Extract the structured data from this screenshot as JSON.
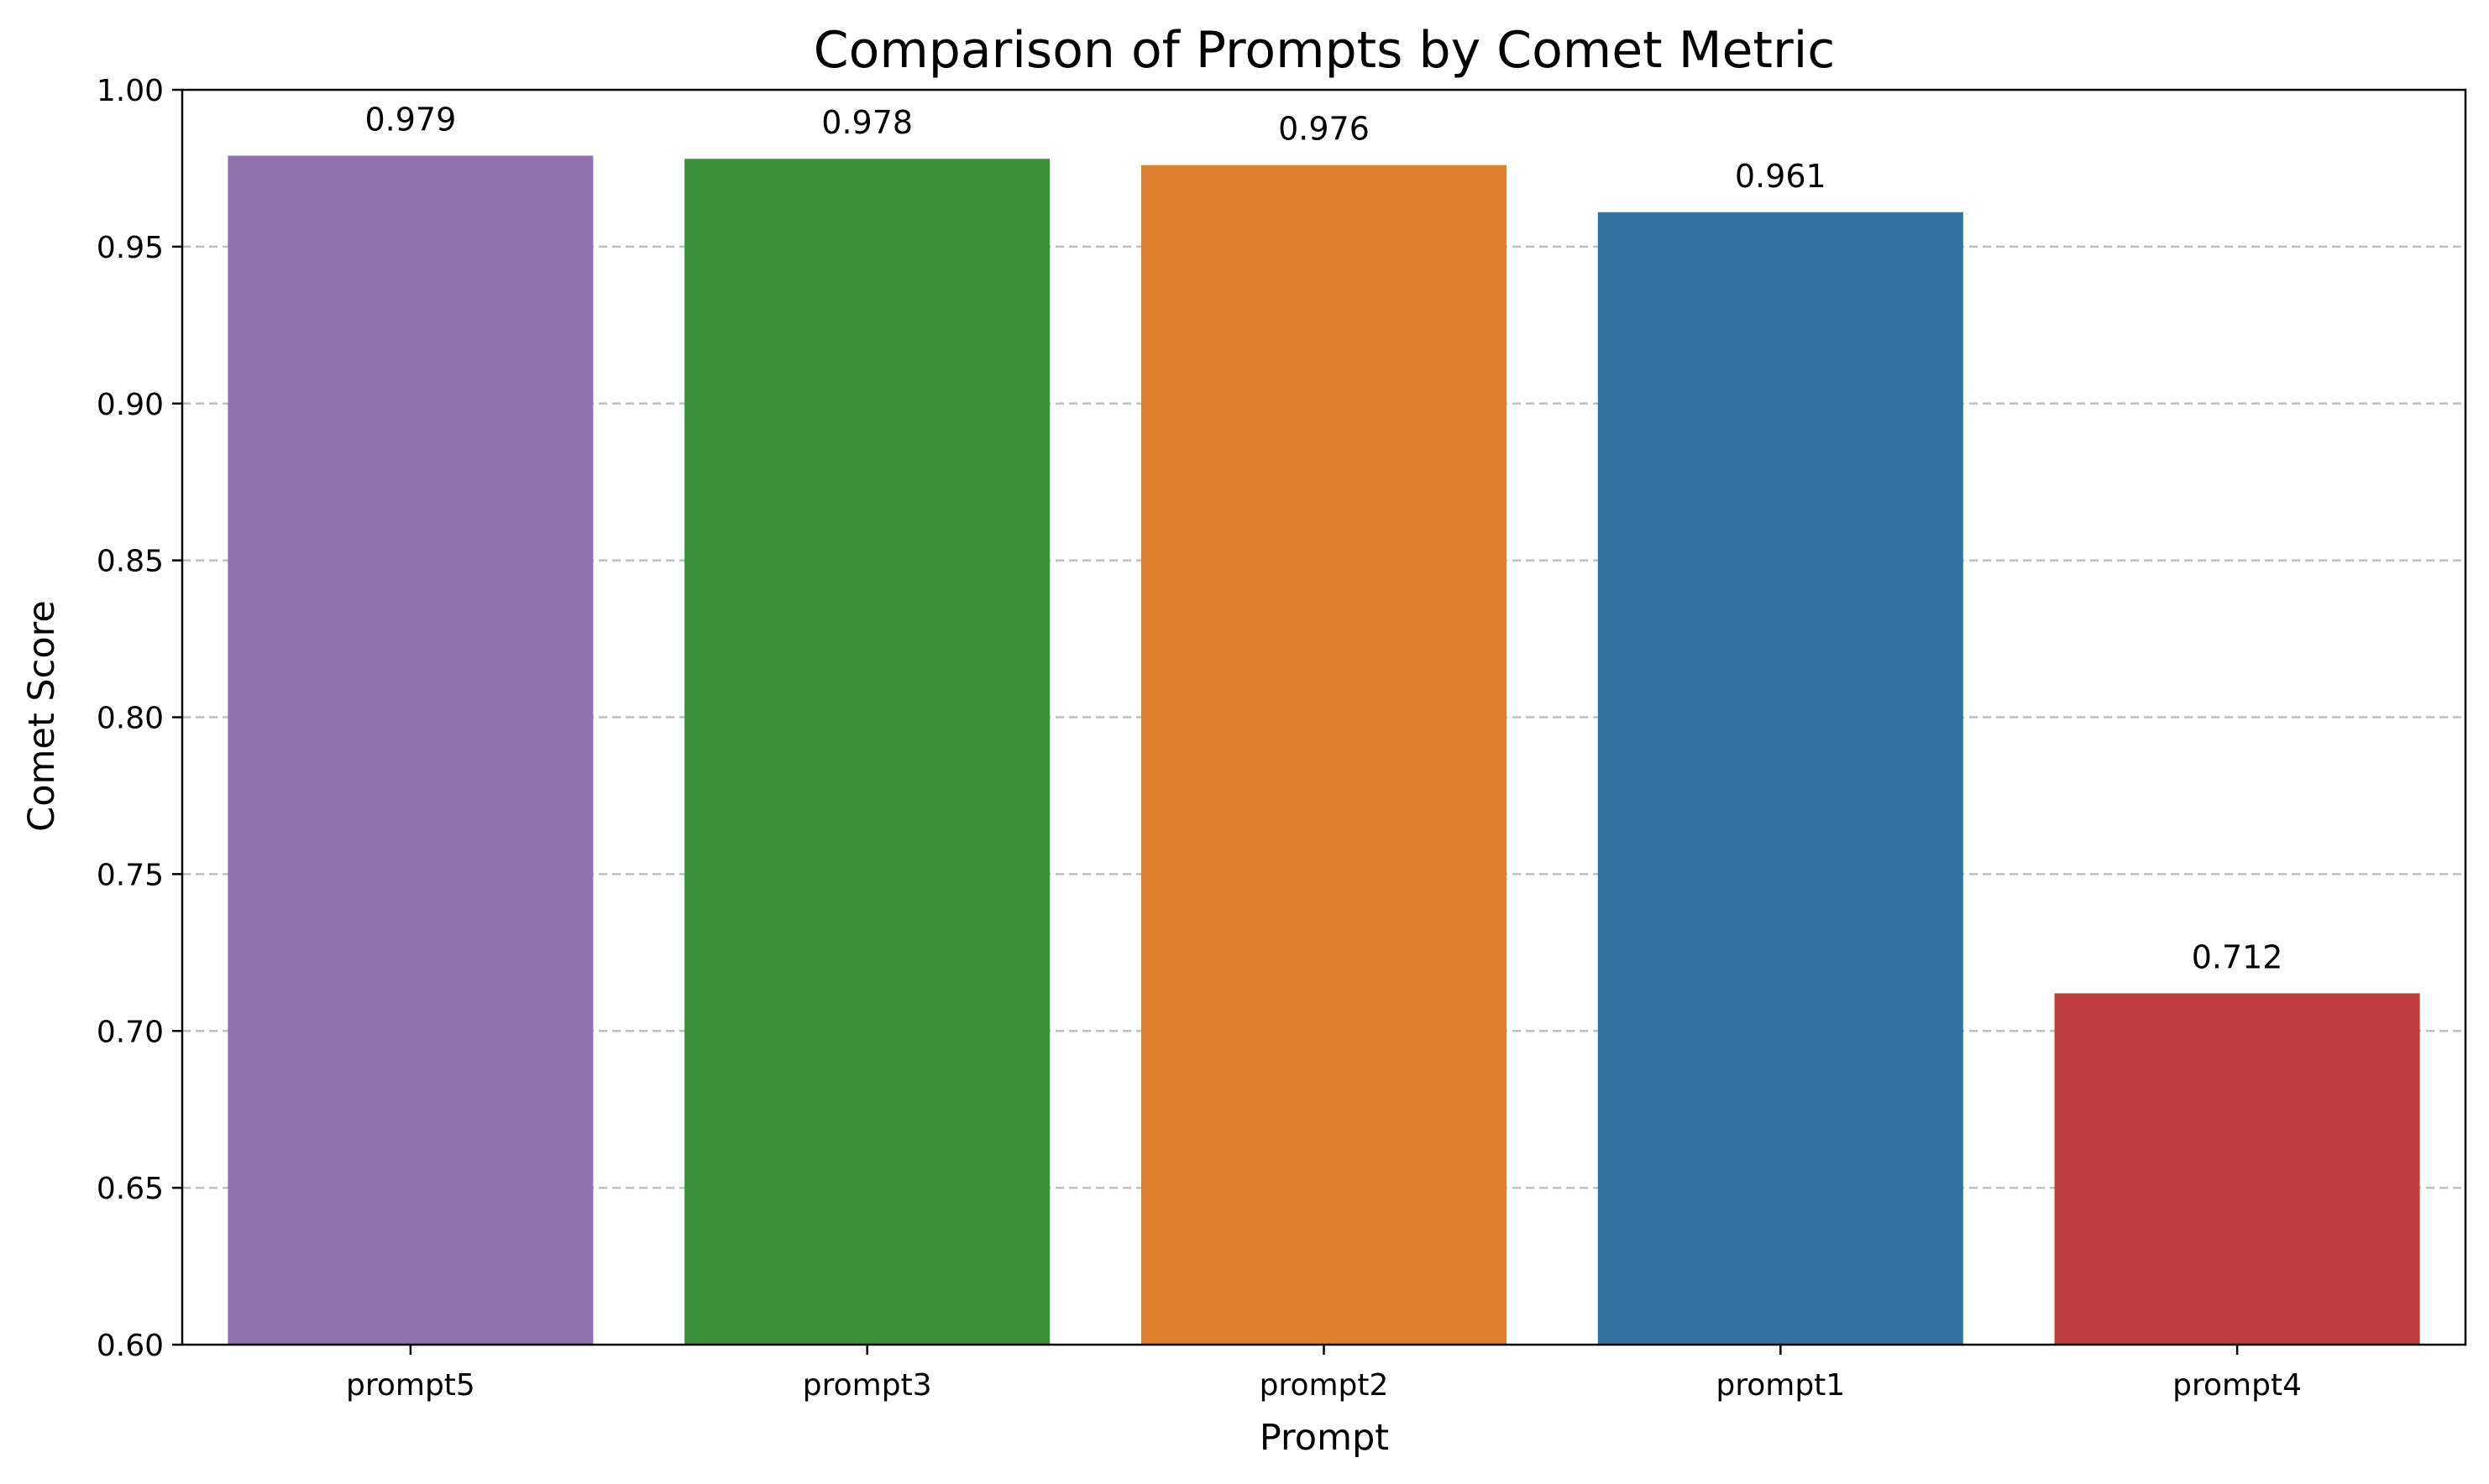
{
  "chart_data": {
    "type": "bar",
    "title": "Comparison of Prompts by Comet Metric",
    "xlabel": "Prompt",
    "ylabel": "Comet Score",
    "categories": [
      "prompt5",
      "prompt3",
      "prompt2",
      "prompt1",
      "prompt4"
    ],
    "values": [
      0.979,
      0.978,
      0.976,
      0.961,
      0.712
    ],
    "data_labels": [
      "0.979",
      "0.978",
      "0.976",
      "0.961",
      "0.712"
    ],
    "colors": [
      "#9172ae",
      "#3a913a",
      "#e0802e",
      "#3174a2",
      "#c03d3e"
    ],
    "ylim": [
      0.6,
      1.0
    ],
    "yticks": [
      0.6,
      0.65,
      0.7,
      0.75,
      0.8,
      0.85,
      0.9,
      0.95,
      1.0
    ],
    "ytick_labels": [
      "0.60",
      "0.65",
      "0.70",
      "0.75",
      "0.80",
      "0.85",
      "0.90",
      "0.95",
      "1.00"
    ],
    "grid": "y-dashed",
    "legend": "none"
  }
}
